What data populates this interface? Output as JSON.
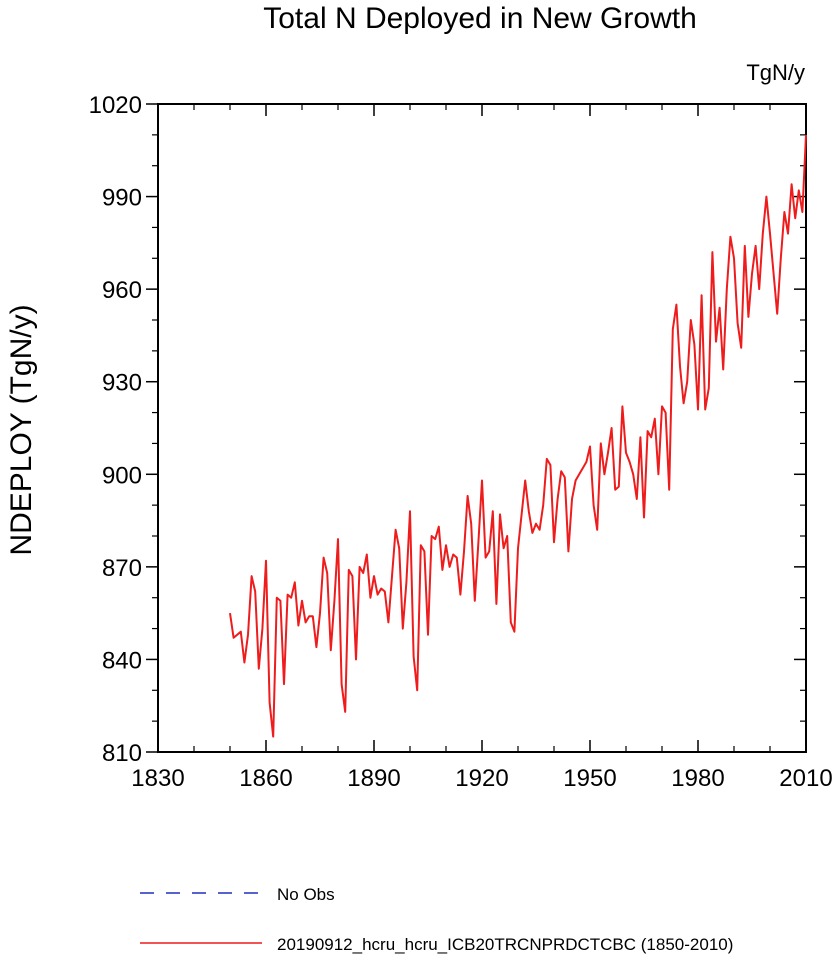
{
  "chart_data": {
    "type": "line",
    "title": "Total N Deployed in New Growth",
    "units": "TgN/y",
    "xlabel": "",
    "ylabel": "NDEPLOY  (TgN/y)",
    "xlim": [
      1830,
      2010
    ],
    "ylim": [
      810,
      1020
    ],
    "xticks": [
      1830,
      1860,
      1890,
      1920,
      1950,
      1980,
      2010
    ],
    "yticks": [
      810,
      840,
      870,
      900,
      930,
      960,
      990,
      1020
    ],
    "grid": false,
    "legend_position": "bottom-left",
    "series": [
      {
        "name": "No Obs",
        "color": "#1f2fbf",
        "style": "dashed",
        "x": [],
        "values": []
      },
      {
        "name": "20190912_hcru_hcru_ICB20TRCNPRDCTCBC (1850-2010)",
        "color": "#ee1c1c",
        "style": "solid",
        "x": [
          1850,
          1851,
          1852,
          1853,
          1854,
          1855,
          1856,
          1857,
          1858,
          1859,
          1860,
          1861,
          1862,
          1863,
          1864,
          1865,
          1866,
          1867,
          1868,
          1869,
          1870,
          1871,
          1872,
          1873,
          1874,
          1875,
          1876,
          1877,
          1878,
          1879,
          1880,
          1881,
          1882,
          1883,
          1884,
          1885,
          1886,
          1887,
          1888,
          1889,
          1890,
          1891,
          1892,
          1893,
          1894,
          1895,
          1896,
          1897,
          1898,
          1899,
          1900,
          1901,
          1902,
          1903,
          1904,
          1905,
          1906,
          1907,
          1908,
          1909,
          1910,
          1911,
          1912,
          1913,
          1914,
          1915,
          1916,
          1917,
          1918,
          1919,
          1920,
          1921,
          1922,
          1923,
          1924,
          1925,
          1926,
          1927,
          1928,
          1929,
          1930,
          1931,
          1932,
          1933,
          1934,
          1935,
          1936,
          1937,
          1938,
          1939,
          1940,
          1941,
          1942,
          1943,
          1944,
          1945,
          1946,
          1947,
          1948,
          1949,
          1950,
          1951,
          1952,
          1953,
          1954,
          1955,
          1956,
          1957,
          1958,
          1959,
          1960,
          1961,
          1962,
          1963,
          1964,
          1965,
          1966,
          1967,
          1968,
          1969,
          1970,
          1971,
          1972,
          1973,
          1974,
          1975,
          1976,
          1977,
          1978,
          1979,
          1980,
          1981,
          1982,
          1983,
          1984,
          1985,
          1986,
          1987,
          1988,
          1989,
          1990,
          1991,
          1992,
          1993,
          1994,
          1995,
          1996,
          1997,
          1998,
          1999,
          2000,
          2001,
          2002,
          2003,
          2004,
          2005,
          2006,
          2007,
          2008,
          2009,
          2010
        ],
        "values": [
          855,
          847,
          848,
          849,
          839,
          848,
          867,
          862,
          837,
          850,
          872,
          826,
          815,
          860,
          859,
          832,
          861,
          860,
          865,
          851,
          859,
          852,
          854,
          854,
          844,
          855,
          873,
          868,
          843,
          859,
          879,
          832,
          823,
          869,
          867,
          840,
          870,
          868,
          874,
          860,
          867,
          861,
          863,
          862,
          852,
          867,
          882,
          876,
          850,
          865,
          888,
          841,
          830,
          877,
          875,
          848,
          880,
          879,
          883,
          869,
          877,
          870,
          874,
          873,
          861,
          875,
          893,
          884,
          859,
          878,
          898,
          873,
          875,
          888,
          858,
          887,
          876,
          880,
          852,
          849,
          876,
          887,
          898,
          888,
          881,
          884,
          882,
          890,
          905,
          903,
          878,
          892,
          901,
          899,
          875,
          892,
          898,
          900,
          902,
          904,
          909,
          890,
          882,
          910,
          900,
          907,
          915,
          895,
          896,
          922,
          907,
          904,
          900,
          892,
          912,
          886,
          914,
          912,
          918,
          900,
          922,
          920,
          895,
          947,
          955,
          935,
          923,
          930,
          950,
          942,
          921,
          958,
          921,
          928,
          972,
          943,
          954,
          934,
          960,
          977,
          970,
          949,
          941,
          974,
          951,
          965,
          974,
          960,
          978,
          990,
          978,
          965,
          952,
          970,
          985,
          978,
          994,
          983,
          992,
          985,
          1010
        ]
      }
    ]
  }
}
